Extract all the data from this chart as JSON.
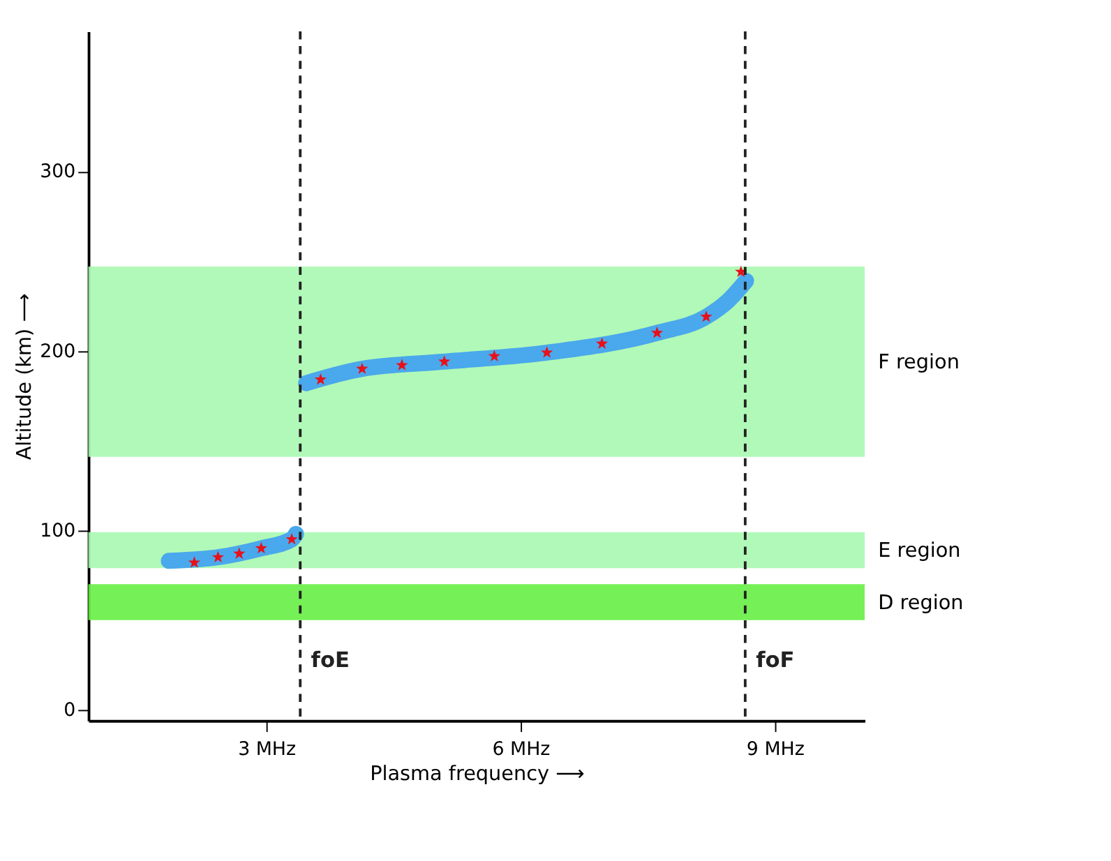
{
  "chart_data": {
    "type": "line",
    "xlabel": "Plasma frequency ⟶",
    "ylabel": "Altitude (km) ⟶",
    "xlim": [
      0.9,
      10.06
    ],
    "xticks": [
      {
        "value": 3,
        "label": "3 MHz"
      },
      {
        "value": 6,
        "label": "6 MHz"
      },
      {
        "value": 9,
        "label": "9 MHz"
      }
    ],
    "ylim": [
      -6,
      378
    ],
    "yticks": [
      0,
      100,
      200,
      300
    ],
    "grid": false,
    "series": [
      {
        "color": "#4aa8ec",
        "marker": "none",
        "line_style": "solid",
        "x": [
          1.85,
          2.43,
          2.94,
          3.3,
          3.35,
          3.4,
          3.47,
          4.13,
          5.1,
          6.31,
          7.61,
          8.19,
          8.45,
          8.66
        ],
        "values": [
          83,
          85,
          90,
          95,
          98,
          null,
          182,
          190,
          194,
          199,
          210,
          219,
          228,
          239
        ]
      },
      {
        "type": "scatter",
        "color": "#e8101a",
        "marker": "star",
        "x": [
          2.15,
          2.43,
          2.68,
          2.94,
          3.3,
          3.64,
          4.13,
          4.6,
          5.1,
          5.69,
          6.31,
          6.96,
          7.61,
          8.19,
          8.6
        ],
        "values": [
          82,
          85,
          87,
          90,
          95,
          184,
          190,
          192,
          194,
          197,
          199,
          204,
          210,
          219,
          244
        ]
      }
    ],
    "bands": [
      {
        "axis": "y",
        "from": 141,
        "to": 247,
        "label": "F region",
        "color": "#a8f8b0"
      },
      {
        "axis": "y",
        "from": 79,
        "to": 99,
        "label": "E region",
        "color": "#a8f8b0"
      },
      {
        "axis": "y",
        "from": 50,
        "to": 70,
        "label": "D region",
        "color": "#66ee44"
      }
    ],
    "ref_lines": [
      {
        "axis": "x",
        "value": 3.4,
        "label": "foE",
        "color": "#222222",
        "line_style": "dashed"
      },
      {
        "axis": "x",
        "value": 8.65,
        "label": "foF",
        "color": "#222222",
        "line_style": "dashed"
      }
    ]
  }
}
